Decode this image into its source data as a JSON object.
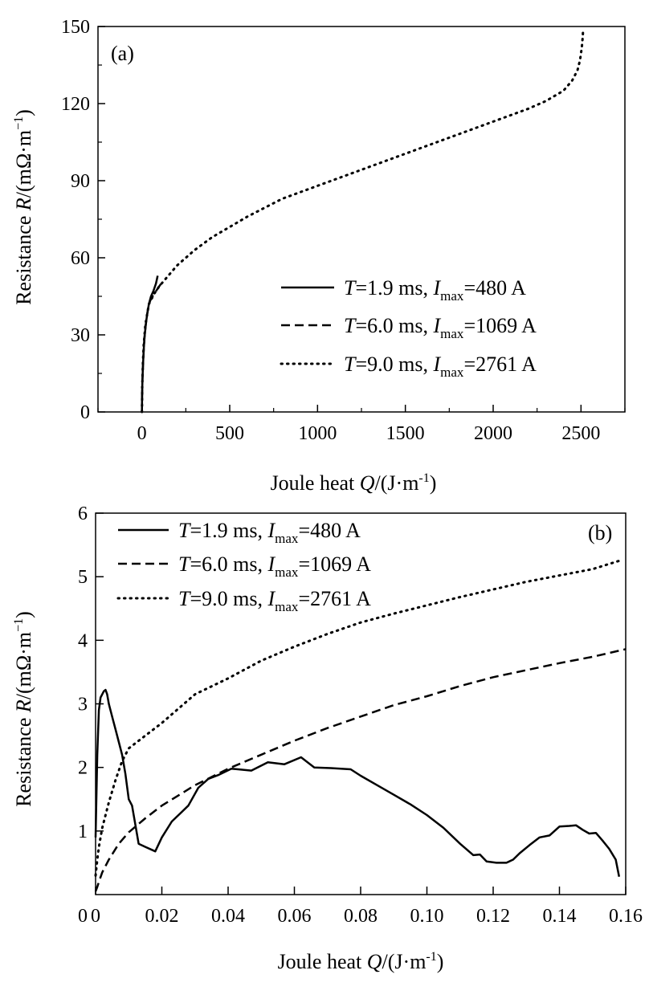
{
  "chart_data": [
    {
      "panel": "(a)",
      "type": "line",
      "xlabel": "Joule heat Q/(J·m-1)",
      "ylabel": "Resistance R/(mΩ·m-1)",
      "xlim": [
        -250,
        2750
      ],
      "ylim": [
        0,
        150
      ],
      "xticks": [
        0,
        500,
        1000,
        1500,
        2000,
        2500
      ],
      "yticks": [
        0,
        30,
        60,
        90,
        120,
        150
      ],
      "legend_position": "lower-right",
      "series": [
        {
          "T": "1.9 ms",
          "Imax": "480 A",
          "style": "solid",
          "x": [
            0,
            1,
            3,
            6,
            10,
            15,
            22,
            30,
            40,
            52,
            65,
            80,
            90
          ],
          "y": [
            0,
            6,
            12,
            18,
            24,
            29,
            34,
            38,
            42,
            45,
            47,
            50,
            53
          ]
        },
        {
          "T": "6.0 ms",
          "Imax": "1069 A",
          "style": "dashed",
          "x": [
            0,
            1,
            3,
            6,
            10,
            15,
            22,
            30,
            40,
            52,
            65,
            80,
            100,
            120
          ],
          "y": [
            0,
            6,
            12,
            18,
            24,
            29,
            34,
            38,
            42,
            44,
            45.5,
            47,
            49,
            51
          ]
        },
        {
          "T": "9.0 ms",
          "Imax": "2761 A",
          "style": "dotted",
          "x": [
            0,
            2,
            5,
            10,
            20,
            40,
            70,
            100,
            150,
            200,
            300,
            400,
            500,
            600,
            700,
            800,
            900,
            1000,
            1100,
            1200,
            1300,
            1400,
            1500,
            1600,
            1700,
            1800,
            1900,
            2000,
            2100,
            2200,
            2300,
            2350,
            2400,
            2450,
            2480,
            2495,
            2505,
            2510,
            2512
          ],
          "y": [
            0,
            10,
            18,
            26,
            34,
            42,
            46,
            49,
            53,
            57,
            63,
            68,
            72,
            76,
            79.5,
            83,
            85.5,
            88,
            90.5,
            93,
            95.5,
            98,
            100.5,
            103,
            105.5,
            108,
            110.5,
            113,
            115.5,
            118,
            121,
            123,
            125,
            129,
            133,
            137,
            142,
            146,
            149
          ]
        }
      ]
    },
    {
      "panel": "(b)",
      "type": "line",
      "xlabel": "Joule heat Q/(J·m-1)",
      "ylabel": "Resistance R/(mΩ·m-1)",
      "xlim": [
        0,
        0.16
      ],
      "ylim": [
        0,
        6
      ],
      "xticks": [
        "0",
        "0.02",
        "0.04",
        "0.06",
        "0.08",
        "0.10",
        "0.12",
        "0.14",
        "0.16"
      ],
      "yticks": [
        "1",
        "2",
        "3",
        "4",
        "5",
        "6"
      ],
      "legend_position": "top-left",
      "series": [
        {
          "T": "1.9 ms",
          "Imax": "480 A",
          "style": "solid",
          "x": [
            0,
            0.0005,
            0.001,
            0.0015,
            0.002,
            0.0025,
            0.003,
            0.0035,
            0.004,
            0.005,
            0.006,
            0.007,
            0.008,
            0.009,
            0.01,
            0.011,
            0.012,
            0.013,
            0.015,
            0.018,
            0.02,
            0.023,
            0.026,
            0.028,
            0.031,
            0.034,
            0.037,
            0.041,
            0.043,
            0.047,
            0.052,
            0.057,
            0.062,
            0.066,
            0.071,
            0.077,
            0.08,
            0.085,
            0.09,
            0.095,
            0.1,
            0.105,
            0.11,
            0.114,
            0.116,
            0.118,
            0.121,
            0.124,
            0.126,
            0.128,
            0.131,
            0.134,
            0.137,
            0.14,
            0.143,
            0.145,
            0.147,
            0.149,
            0.151,
            0.153,
            0.155,
            0.157,
            0.158
          ],
          "y": [
            0.9,
            2.2,
            2.9,
            3.1,
            3.15,
            3.2,
            3.22,
            3.15,
            3.0,
            2.8,
            2.6,
            2.4,
            2.2,
            1.9,
            1.5,
            1.4,
            1.1,
            0.8,
            0.75,
            0.68,
            0.9,
            1.15,
            1.3,
            1.4,
            1.68,
            1.82,
            1.88,
            1.98,
            1.97,
            1.95,
            2.08,
            2.05,
            2.16,
            2.0,
            1.99,
            1.97,
            1.87,
            1.72,
            1.57,
            1.42,
            1.25,
            1.05,
            0.8,
            0.62,
            0.63,
            0.52,
            0.5,
            0.5,
            0.55,
            0.65,
            0.78,
            0.9,
            0.93,
            1.07,
            1.08,
            1.09,
            1.02,
            0.96,
            0.97,
            0.85,
            0.72,
            0.55,
            0.28
          ]
        },
        {
          "T": "6.0 ms",
          "Imax": "1069 A",
          "style": "dashed",
          "x": [
            0,
            0.0005,
            0.001,
            0.002,
            0.004,
            0.007,
            0.01,
            0.015,
            0.02,
            0.03,
            0.04,
            0.05,
            0.06,
            0.07,
            0.08,
            0.09,
            0.1,
            0.11,
            0.12,
            0.13,
            0.14,
            0.15,
            0.16
          ],
          "y": [
            0.05,
            0.12,
            0.2,
            0.35,
            0.55,
            0.8,
            0.98,
            1.2,
            1.4,
            1.72,
            1.98,
            2.2,
            2.42,
            2.62,
            2.8,
            2.98,
            3.12,
            3.28,
            3.42,
            3.53,
            3.64,
            3.74,
            3.86
          ]
        },
        {
          "T": "9.0 ms",
          "Imax": "2761 A",
          "style": "dotted",
          "x": [
            0,
            0.0005,
            0.001,
            0.002,
            0.004,
            0.006,
            0.008,
            0.01,
            0.015,
            0.02,
            0.03,
            0.04,
            0.05,
            0.06,
            0.07,
            0.08,
            0.09,
            0.1,
            0.11,
            0.12,
            0.13,
            0.14,
            0.15,
            0.158
          ],
          "y": [
            0.3,
            0.55,
            0.75,
            1.05,
            1.45,
            1.8,
            2.1,
            2.3,
            2.5,
            2.7,
            3.15,
            3.4,
            3.68,
            3.9,
            4.1,
            4.28,
            4.42,
            4.55,
            4.68,
            4.8,
            4.92,
            5.02,
            5.12,
            5.25
          ]
        }
      ]
    }
  ]
}
